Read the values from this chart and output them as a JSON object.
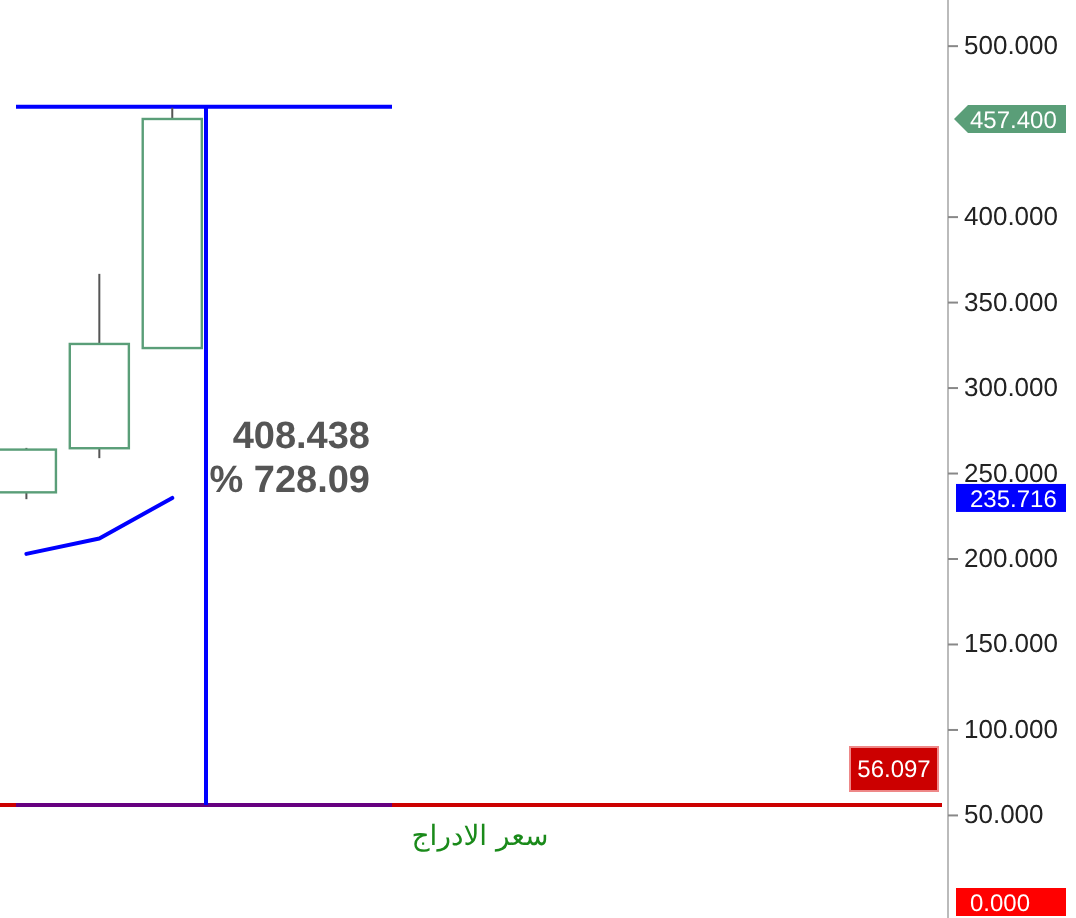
{
  "chart_data": {
    "type": "candlestick",
    "categories": [
      null,
      null,
      null,
      null,
      null,
      null,
      null,
      null,
      null,
      null,
      null,
      null,
      null
    ],
    "series": [
      {
        "color": "#5a9e78",
        "ohlc": [
          [
            239,
            265,
            235,
            264
          ],
          [
            264.8,
            366.8,
            259,
            325.8
          ],
          [
            323.4,
            464,
            323.4,
            457.4
          ],
          null,
          null,
          null,
          null,
          null,
          null,
          null,
          null,
          null,
          null
        ]
      },
      {
        "type": "line",
        "color": "#0000ff",
        "values": [
          203,
          212,
          235.716,
          null,
          null,
          null,
          null,
          null,
          null,
          null,
          null,
          null,
          null
        ]
      }
    ],
    "ylim": [
      -10,
      527
    ],
    "yticks": [
      {
        "value": 50,
        "label": "50.000"
      },
      {
        "value": 100,
        "label": "100.000"
      },
      {
        "value": 150,
        "label": "150.000"
      },
      {
        "value": 200,
        "label": "200.000"
      },
      {
        "value": 250,
        "label": "250.000"
      },
      {
        "value": 300,
        "label": "300.000"
      },
      {
        "value": 350,
        "label": "350.000"
      },
      {
        "value": 400,
        "label": "400.000"
      },
      {
        "value": 500,
        "label": "500.000"
      }
    ],
    "ref_lines": [
      {
        "axis": "y",
        "value": 56.097,
        "label": "سعر الادراج",
        "color": "#cc0000"
      },
      {
        "axis": "y",
        "value": 464.535,
        "color": "#0000ff"
      }
    ],
    "annotations": [
      "457.400",
      "235.716",
      {
        "text": "56.097",
        "y": 56.097
      },
      "0.000",
      "408.438",
      "% 728.09"
    ]
  }
}
